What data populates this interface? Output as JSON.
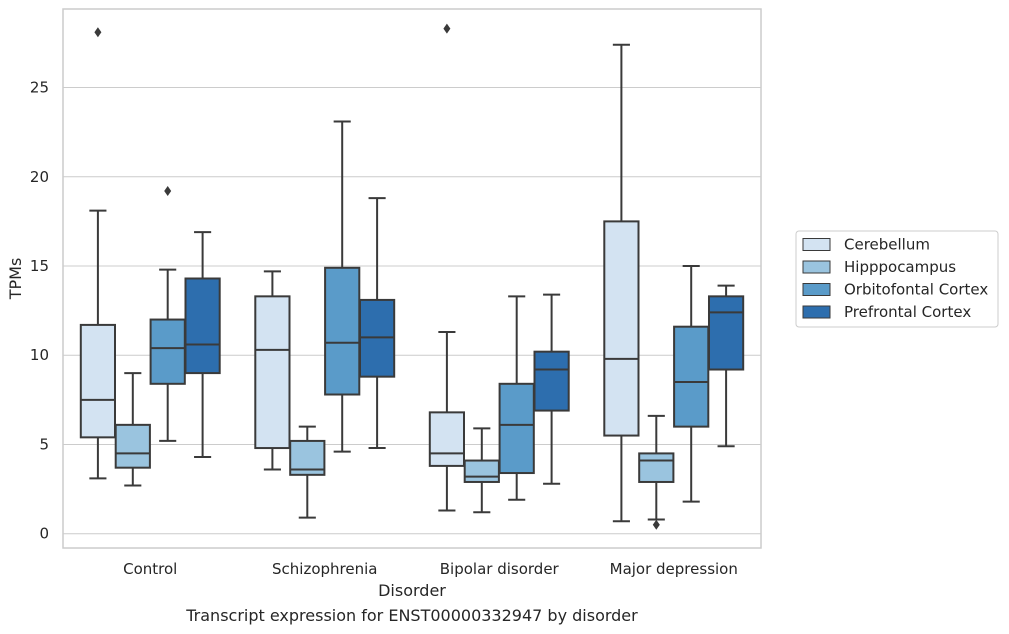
{
  "caption": "Transcript expression for ENST00000332947 by disorder",
  "chart_data": {
    "type": "box",
    "xlabel": "Disorder",
    "ylabel": "TPMs",
    "ylim": [
      -0.8,
      29.4
    ],
    "yticks": [
      0,
      5,
      10,
      15,
      20,
      25
    ],
    "grid": "horizontal",
    "legend_position": "outside-right",
    "categories": [
      "Control",
      "Schizophrenia",
      "Bipolar disorder",
      "Major depression"
    ],
    "series": [
      {
        "name": "Cerebellum",
        "color": "#d3e3f2",
        "boxes": [
          {
            "whisker_low": 3.1,
            "q1": 5.4,
            "median": 7.5,
            "q3": 11.7,
            "whisker_high": 18.1,
            "outliers": [
              28.1
            ]
          },
          {
            "whisker_low": 3.6,
            "q1": 4.8,
            "median": 10.3,
            "q3": 13.3,
            "whisker_high": 14.7,
            "outliers": []
          },
          {
            "whisker_low": 1.3,
            "q1": 3.8,
            "median": 4.5,
            "q3": 6.8,
            "whisker_high": 11.3,
            "outliers": [
              28.3
            ]
          },
          {
            "whisker_low": 0.7,
            "q1": 5.5,
            "median": 9.8,
            "q3": 17.5,
            "whisker_high": 27.4,
            "outliers": []
          }
        ]
      },
      {
        "name": "Hipppocampus",
        "color": "#9ac4df",
        "boxes": [
          {
            "whisker_low": 2.7,
            "q1": 3.7,
            "median": 4.5,
            "q3": 6.1,
            "whisker_high": 9.0,
            "outliers": []
          },
          {
            "whisker_low": 0.9,
            "q1": 3.3,
            "median": 3.6,
            "q3": 5.2,
            "whisker_high": 6.0,
            "outliers": []
          },
          {
            "whisker_low": 1.2,
            "q1": 2.9,
            "median": 3.2,
            "q3": 4.1,
            "whisker_high": 5.9,
            "outliers": []
          },
          {
            "whisker_low": 0.8,
            "q1": 2.9,
            "median": 4.1,
            "q3": 4.5,
            "whisker_high": 6.6,
            "outliers": [
              0.5
            ]
          }
        ]
      },
      {
        "name": "Orbitofontal Cortex",
        "color": "#5a9bc9",
        "boxes": [
          {
            "whisker_low": 5.2,
            "q1": 8.4,
            "median": 10.4,
            "q3": 12.0,
            "whisker_high": 14.8,
            "outliers": [
              19.2
            ]
          },
          {
            "whisker_low": 4.6,
            "q1": 7.8,
            "median": 10.7,
            "q3": 14.9,
            "whisker_high": 23.1,
            "outliers": []
          },
          {
            "whisker_low": 1.9,
            "q1": 3.4,
            "median": 6.1,
            "q3": 8.4,
            "whisker_high": 13.3,
            "outliers": []
          },
          {
            "whisker_low": 1.8,
            "q1": 6.0,
            "median": 8.5,
            "q3": 11.6,
            "whisker_high": 15.0,
            "outliers": []
          }
        ]
      },
      {
        "name": "Prefrontal Cortex",
        "color": "#2d6eae",
        "boxes": [
          {
            "whisker_low": 4.3,
            "q1": 9.0,
            "median": 10.6,
            "q3": 14.3,
            "whisker_high": 16.9,
            "outliers": []
          },
          {
            "whisker_low": 4.8,
            "q1": 8.8,
            "median": 11.0,
            "q3": 13.1,
            "whisker_high": 18.8,
            "outliers": []
          },
          {
            "whisker_low": 2.8,
            "q1": 6.9,
            "median": 9.2,
            "q3": 10.2,
            "whisker_high": 13.4,
            "outliers": []
          },
          {
            "whisker_low": 4.9,
            "q1": 9.2,
            "median": 12.4,
            "q3": 13.3,
            "whisker_high": 13.9,
            "outliers": []
          }
        ]
      }
    ]
  }
}
